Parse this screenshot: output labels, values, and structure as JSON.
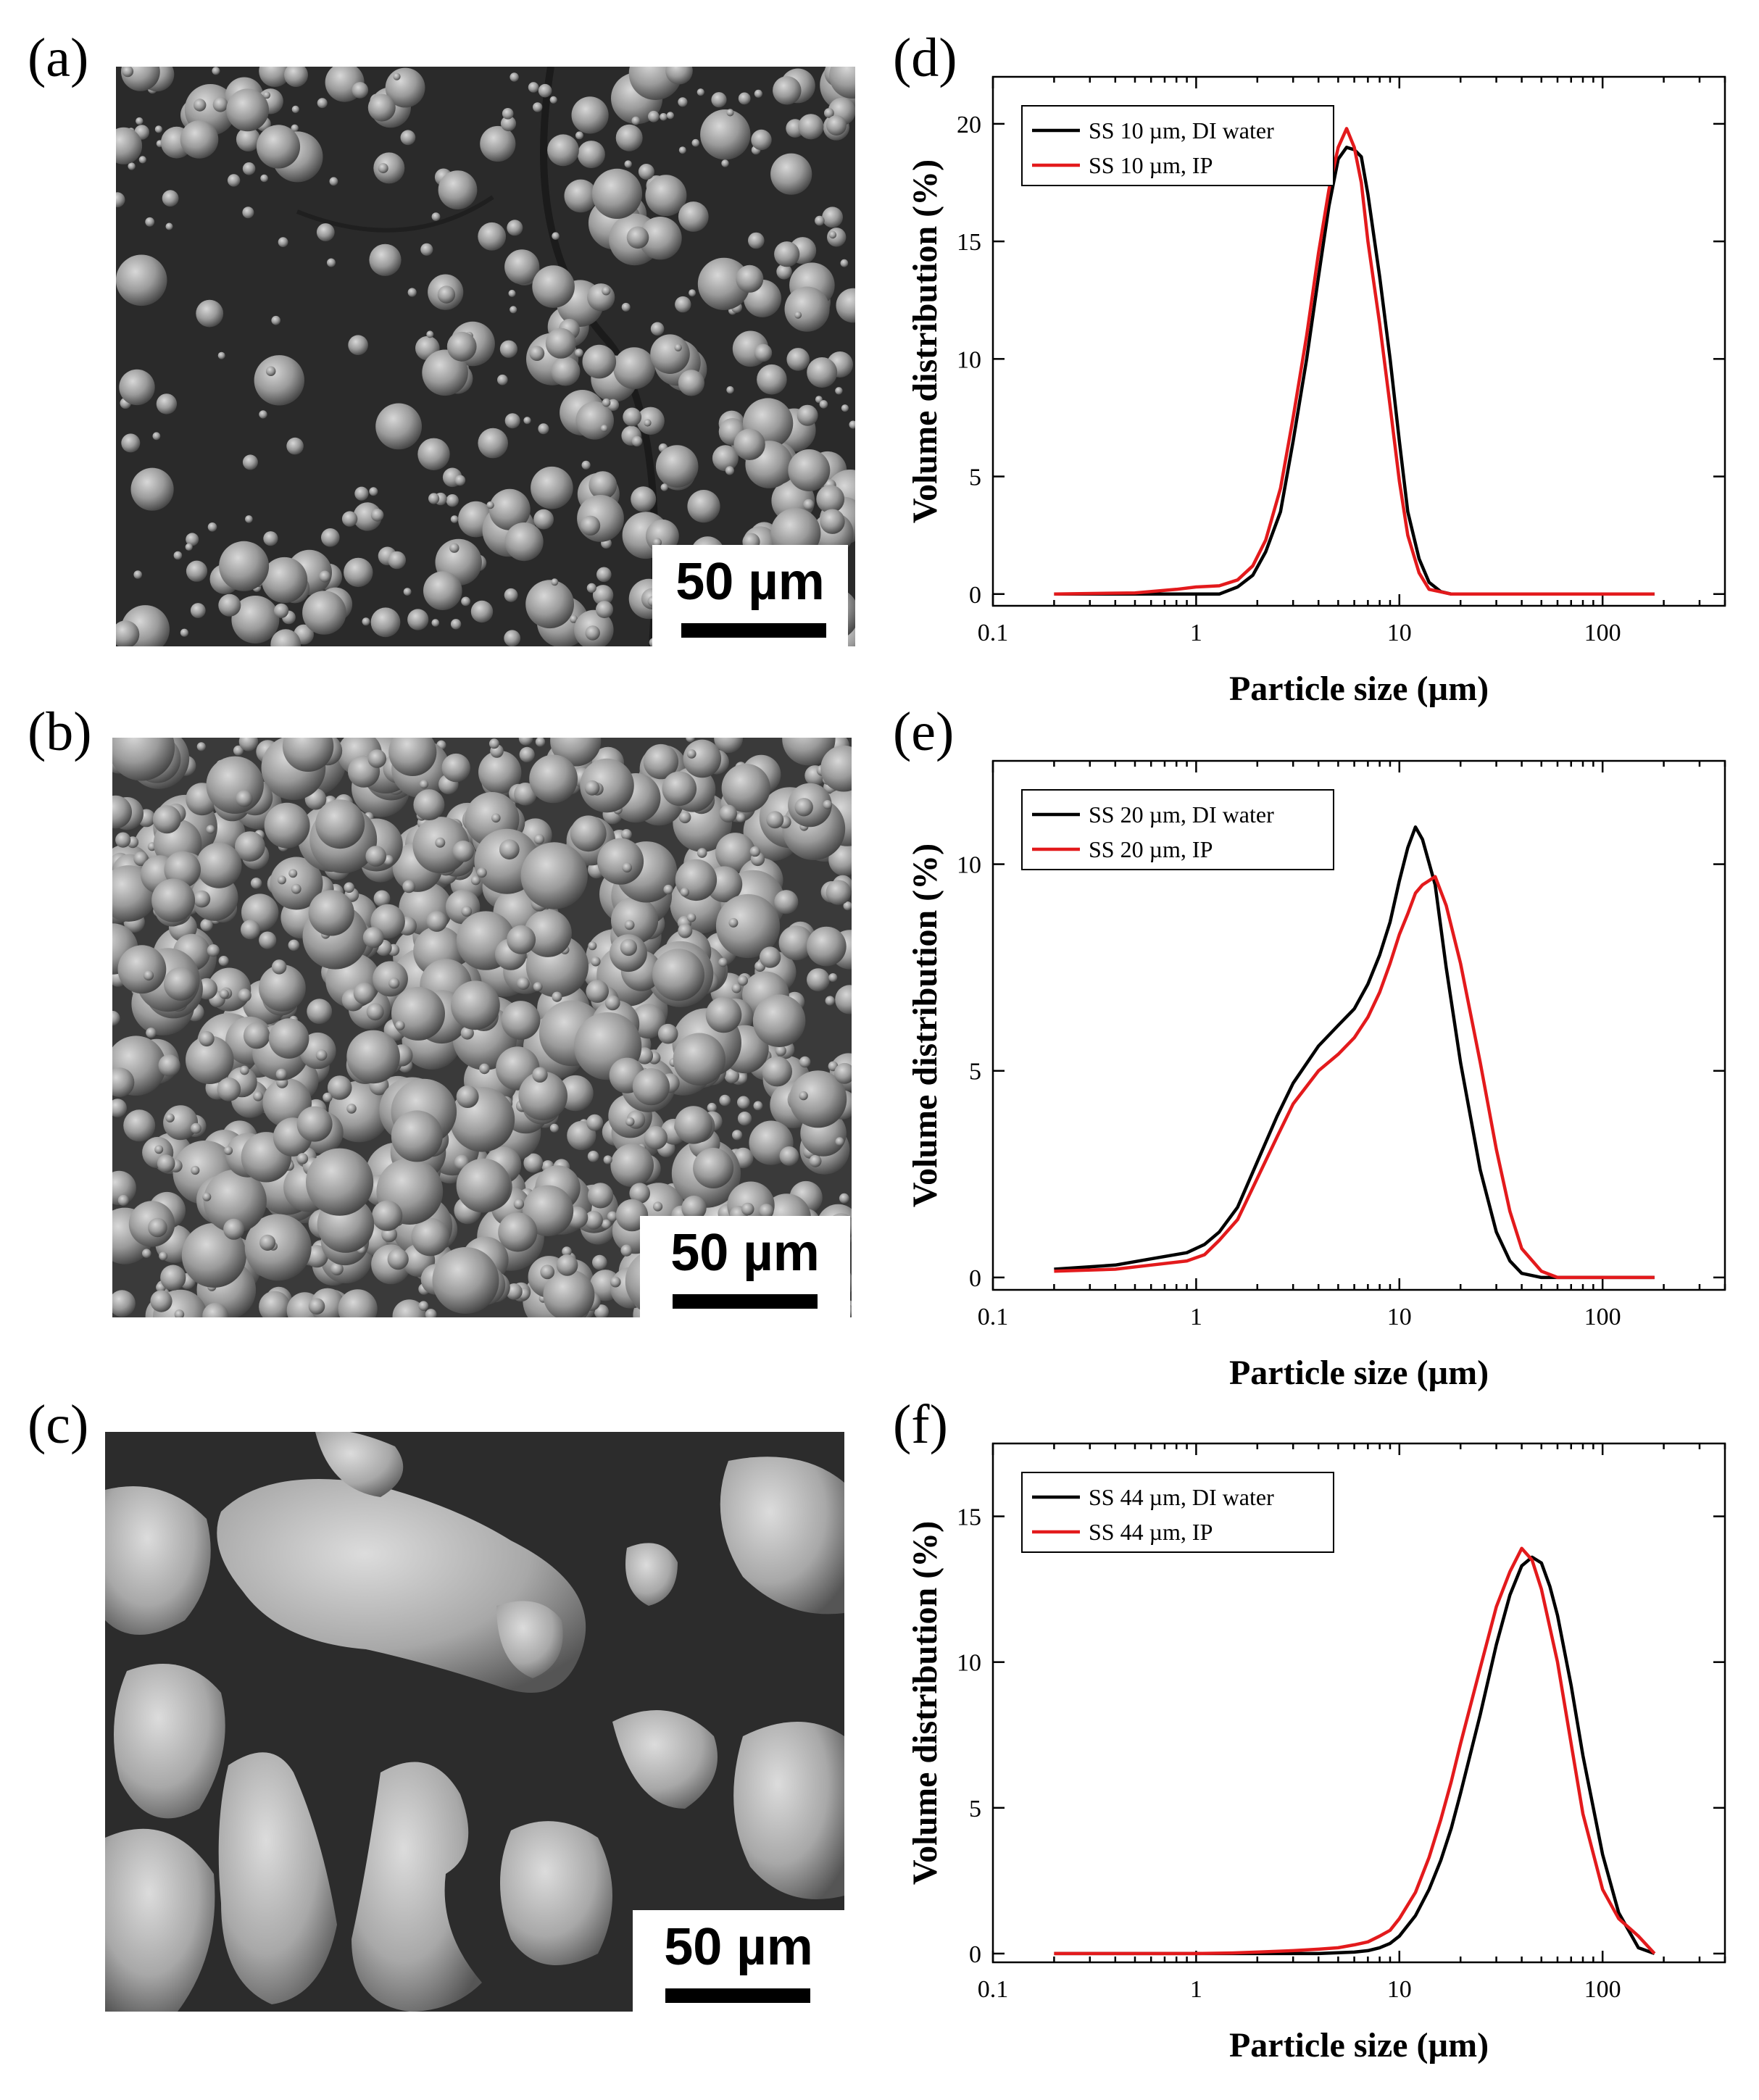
{
  "panels": {
    "a": {
      "letter": "(a)",
      "scale_label": "50 µm"
    },
    "b": {
      "letter": "(b)",
      "scale_label": "50 µm"
    },
    "c": {
      "letter": "(c)",
      "scale_label": "50 µm"
    },
    "d": {
      "letter": "(d)"
    },
    "e": {
      "letter": "(e)"
    },
    "f": {
      "letter": "(f)"
    }
  },
  "colors": {
    "series_water": "#000000",
    "series_ip": "#e31a1c"
  },
  "chart_data": [
    {
      "type": "line",
      "panel": "(d)",
      "xlabel": "Particle size (µm)",
      "ylabel": "Volume distribution (%)",
      "xscale": "log",
      "xlim": [
        0.1,
        400
      ],
      "ylim": [
        -0.5,
        22
      ],
      "xticks": [
        0.1,
        1,
        10,
        100
      ],
      "xtick_labels": [
        "0.1",
        "1",
        "10",
        "100"
      ],
      "yticks": [
        0,
        5,
        10,
        15,
        20
      ],
      "ytick_labels": [
        "0",
        "5",
        "10",
        "15",
        "20"
      ],
      "legend_position": "top-left",
      "series": [
        {
          "name": "SS 10 µm, DI water",
          "color": "#000000",
          "x": [
            0.2,
            0.5,
            1,
            1.3,
            1.6,
            1.9,
            2.2,
            2.6,
            3,
            3.5,
            4,
            4.5,
            5,
            5.5,
            6,
            6.5,
            7,
            8,
            9,
            10,
            11,
            12.5,
            14,
            16,
            18,
            22,
            40,
            100,
            180
          ],
          "y": [
            0,
            0,
            0,
            0,
            0.3,
            0.8,
            1.8,
            3.5,
            6.5,
            10,
            13.5,
            16.5,
            18.5,
            19,
            18.9,
            18.6,
            17,
            13.5,
            10,
            6.5,
            3.5,
            1.5,
            0.5,
            0.1,
            0,
            0,
            0,
            0,
            0
          ]
        },
        {
          "name": "SS 10 µm, IP",
          "color": "#e31a1c",
          "x": [
            0.2,
            0.5,
            0.8,
            1,
            1.3,
            1.6,
            1.9,
            2.2,
            2.6,
            3,
            3.5,
            4,
            4.5,
            5,
            5.5,
            6,
            6.5,
            7,
            8,
            9,
            10,
            11,
            12.5,
            14,
            18,
            40,
            100,
            180
          ],
          "y": [
            0,
            0.05,
            0.2,
            0.3,
            0.35,
            0.6,
            1.2,
            2.3,
            4.5,
            7.5,
            11,
            14.5,
            17.2,
            19,
            19.8,
            19,
            17.5,
            15,
            11.5,
            8,
            4.8,
            2.5,
            0.9,
            0.2,
            0,
            0,
            0,
            0
          ]
        }
      ]
    },
    {
      "type": "line",
      "panel": "(e)",
      "xlabel": "Particle size (µm)",
      "ylabel": "Volume distribution (%)",
      "xscale": "log",
      "xlim": [
        0.1,
        400
      ],
      "ylim": [
        -0.3,
        12.5
      ],
      "xticks": [
        0.1,
        1,
        10,
        100
      ],
      "xtick_labels": [
        "0.1",
        "1",
        "10",
        "100"
      ],
      "yticks": [
        0,
        5,
        10
      ],
      "ytick_labels": [
        "0",
        "5",
        "10"
      ],
      "legend_position": "top-left",
      "series": [
        {
          "name": "SS 20 µm, DI water",
          "color": "#000000",
          "x": [
            0.2,
            0.4,
            0.6,
            0.9,
            1.1,
            1.3,
            1.6,
            2,
            2.5,
            3,
            4,
            5,
            6,
            7,
            8,
            9,
            10,
            11,
            12,
            13,
            15,
            17,
            20,
            25,
            30,
            35,
            40,
            50,
            100,
            180
          ],
          "y": [
            0.2,
            0.3,
            0.45,
            0.6,
            0.8,
            1.1,
            1.7,
            2.8,
            3.9,
            4.7,
            5.6,
            6.1,
            6.5,
            7.1,
            7.8,
            8.6,
            9.6,
            10.4,
            10.9,
            10.6,
            9.5,
            7.5,
            5.2,
            2.6,
            1.1,
            0.4,
            0.1,
            0,
            0,
            0
          ]
        },
        {
          "name": "SS 20 µm, IP",
          "color": "#e31a1c",
          "x": [
            0.2,
            0.4,
            0.6,
            0.9,
            1.1,
            1.3,
            1.6,
            2,
            2.5,
            3,
            4,
            5,
            6,
            7,
            8,
            9,
            10,
            11,
            12,
            13,
            15,
            17,
            20,
            25,
            30,
            35,
            40,
            50,
            60,
            100,
            180
          ],
          "y": [
            0.15,
            0.2,
            0.3,
            0.4,
            0.55,
            0.9,
            1.4,
            2.4,
            3.4,
            4.2,
            5,
            5.4,
            5.8,
            6.3,
            6.9,
            7.6,
            8.3,
            8.8,
            9.3,
            9.5,
            9.7,
            9.0,
            7.6,
            5.2,
            3.1,
            1.6,
            0.7,
            0.15,
            0,
            0,
            0
          ]
        }
      ]
    },
    {
      "type": "line",
      "panel": "(f)",
      "xlabel": "Particle size (µm)",
      "ylabel": "Volume distribution (%)",
      "xscale": "log",
      "xlim": [
        0.1,
        400
      ],
      "ylim": [
        -0.3,
        17.5
      ],
      "xticks": [
        0.1,
        1,
        10,
        100
      ],
      "xtick_labels": [
        "0.1",
        "1",
        "10",
        "100"
      ],
      "yticks": [
        0,
        5,
        10,
        15
      ],
      "ytick_labels": [
        "0",
        "5",
        "10",
        "15"
      ],
      "legend_position": "top-left",
      "series": [
        {
          "name": "SS 44 µm, DI water",
          "color": "#000000",
          "x": [
            0.2,
            1,
            2,
            4,
            6,
            7,
            8,
            9,
            10,
            12,
            14,
            16,
            18,
            20,
            25,
            30,
            35,
            40,
            45,
            50,
            55,
            60,
            70,
            80,
            100,
            120,
            150,
            180
          ],
          "y": [
            0,
            0,
            0,
            0,
            0.05,
            0.1,
            0.2,
            0.35,
            0.6,
            1.3,
            2.2,
            3.2,
            4.3,
            5.5,
            8.2,
            10.6,
            12.3,
            13.3,
            13.6,
            13.4,
            12.6,
            11.6,
            9.2,
            6.8,
            3.4,
            1.4,
            0.2,
            0
          ]
        },
        {
          "name": "SS 44 µm, IP",
          "color": "#e31a1c",
          "x": [
            0.2,
            1,
            1.5,
            2,
            3,
            4,
            5,
            6,
            7,
            8,
            9,
            10,
            12,
            14,
            16,
            18,
            20,
            25,
            30,
            35,
            40,
            45,
            50,
            60,
            70,
            80,
            100,
            120,
            150,
            180
          ],
          "y": [
            0,
            0,
            0.02,
            0.05,
            0.1,
            0.15,
            0.2,
            0.3,
            0.4,
            0.6,
            0.8,
            1.2,
            2.1,
            3.3,
            4.6,
            5.9,
            7.2,
            9.8,
            11.9,
            13.1,
            13.9,
            13.5,
            12.5,
            10,
            7.2,
            4.8,
            2.2,
            1.2,
            0.6,
            0
          ]
        }
      ]
    }
  ]
}
